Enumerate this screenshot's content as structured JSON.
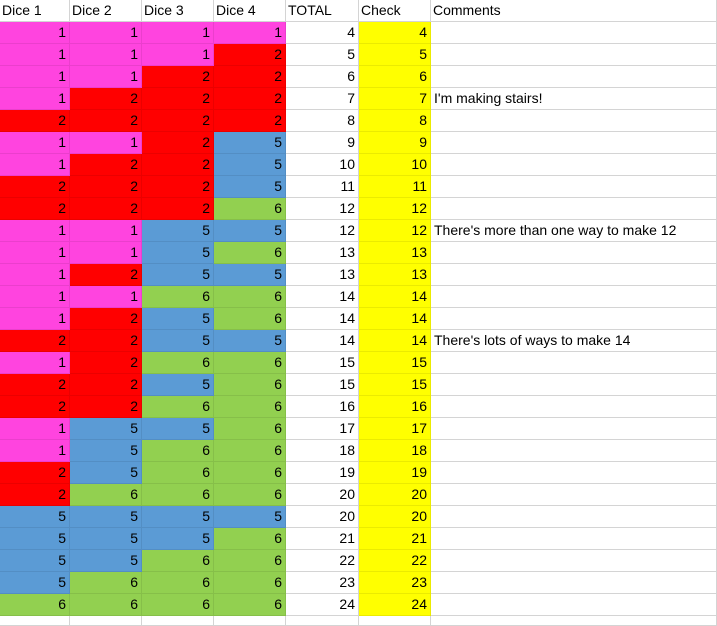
{
  "headers": [
    "Dice 1",
    "Dice 2",
    "Dice 3",
    "Dice 4",
    "TOTAL",
    "Check",
    "Comments"
  ],
  "colors": {
    "1": "#ff44df",
    "2": "#ff0000",
    "5": "#5b9bd5",
    "6": "#92d050",
    "check": "#ffff00"
  },
  "rows": [
    {
      "dice": [
        1,
        1,
        1,
        1
      ],
      "total": 4,
      "check": 4,
      "comment": ""
    },
    {
      "dice": [
        1,
        1,
        1,
        2
      ],
      "total": 5,
      "check": 5,
      "comment": ""
    },
    {
      "dice": [
        1,
        1,
        2,
        2
      ],
      "total": 6,
      "check": 6,
      "comment": ""
    },
    {
      "dice": [
        1,
        2,
        2,
        2
      ],
      "total": 7,
      "check": 7,
      "comment": "I'm making stairs!"
    },
    {
      "dice": [
        2,
        2,
        2,
        2
      ],
      "total": 8,
      "check": 8,
      "comment": ""
    },
    {
      "dice": [
        1,
        1,
        2,
        5
      ],
      "total": 9,
      "check": 9,
      "comment": ""
    },
    {
      "dice": [
        1,
        2,
        2,
        5
      ],
      "total": 10,
      "check": 10,
      "comment": ""
    },
    {
      "dice": [
        2,
        2,
        2,
        5
      ],
      "total": 11,
      "check": 11,
      "comment": ""
    },
    {
      "dice": [
        2,
        2,
        2,
        6
      ],
      "total": 12,
      "check": 12,
      "comment": ""
    },
    {
      "dice": [
        1,
        1,
        5,
        5
      ],
      "total": 12,
      "check": 12,
      "comment": "There's more than one way to make 12"
    },
    {
      "dice": [
        1,
        1,
        5,
        6
      ],
      "total": 13,
      "check": 13,
      "comment": ""
    },
    {
      "dice": [
        1,
        2,
        5,
        5
      ],
      "total": 13,
      "check": 13,
      "comment": ""
    },
    {
      "dice": [
        1,
        1,
        6,
        6
      ],
      "total": 14,
      "check": 14,
      "comment": ""
    },
    {
      "dice": [
        1,
        2,
        5,
        6
      ],
      "total": 14,
      "check": 14,
      "comment": ""
    },
    {
      "dice": [
        2,
        2,
        5,
        5
      ],
      "total": 14,
      "check": 14,
      "comment": "There's lots of ways to make 14"
    },
    {
      "dice": [
        1,
        2,
        6,
        6
      ],
      "total": 15,
      "check": 15,
      "comment": ""
    },
    {
      "dice": [
        2,
        2,
        5,
        6
      ],
      "total": 15,
      "check": 15,
      "comment": ""
    },
    {
      "dice": [
        2,
        2,
        6,
        6
      ],
      "total": 16,
      "check": 16,
      "comment": ""
    },
    {
      "dice": [
        1,
        5,
        5,
        6
      ],
      "total": 17,
      "check": 17,
      "comment": ""
    },
    {
      "dice": [
        1,
        5,
        6,
        6
      ],
      "total": 18,
      "check": 18,
      "comment": ""
    },
    {
      "dice": [
        2,
        5,
        6,
        6
      ],
      "total": 19,
      "check": 19,
      "comment": ""
    },
    {
      "dice": [
        2,
        6,
        6,
        6
      ],
      "total": 20,
      "check": 20,
      "comment": ""
    },
    {
      "dice": [
        5,
        5,
        5,
        5
      ],
      "total": 20,
      "check": 20,
      "comment": ""
    },
    {
      "dice": [
        5,
        5,
        5,
        6
      ],
      "total": 21,
      "check": 21,
      "comment": ""
    },
    {
      "dice": [
        5,
        5,
        6,
        6
      ],
      "total": 22,
      "check": 22,
      "comment": ""
    },
    {
      "dice": [
        5,
        6,
        6,
        6
      ],
      "total": 23,
      "check": 23,
      "comment": ""
    },
    {
      "dice": [
        6,
        6,
        6,
        6
      ],
      "total": 24,
      "check": 24,
      "comment": ""
    }
  ]
}
